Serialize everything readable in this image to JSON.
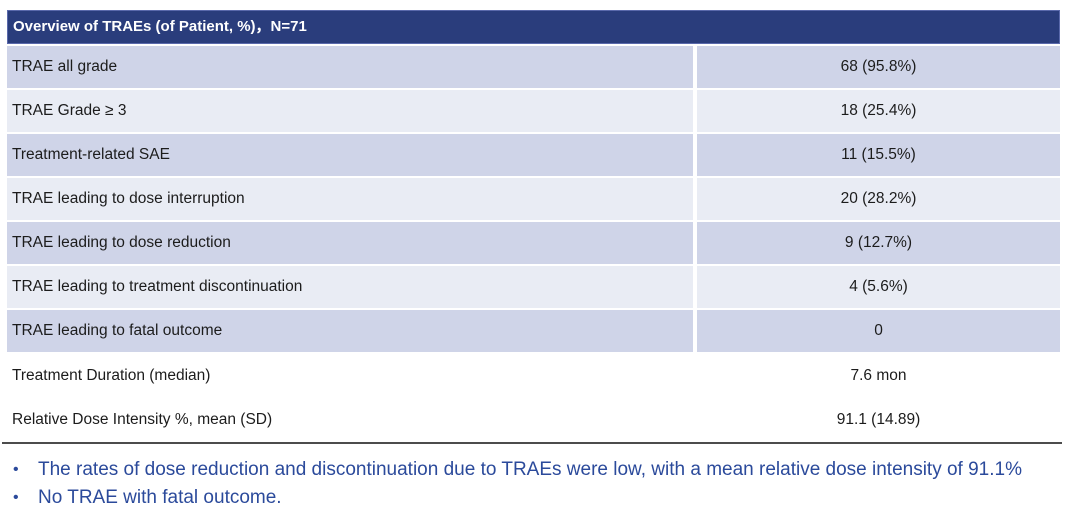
{
  "table": {
    "title": "Overview of TRAEs (of Patient, %)，N=71",
    "rows": [
      {
        "label": "TRAE all grade",
        "value": "68 (95.8%)"
      },
      {
        "label": "TRAE Grade ≥ 3",
        "value": "18 (25.4%)"
      },
      {
        "label": "Treatment-related SAE",
        "value": "11 (15.5%)"
      },
      {
        "label": "TRAE leading to dose interruption",
        "value": "20 (28.2%)"
      },
      {
        "label": "TRAE leading to dose reduction",
        "value": "9 (12.7%)"
      },
      {
        "label": "TRAE leading to treatment discontinuation",
        "value": "4 (5.6%)"
      },
      {
        "label": "TRAE leading to fatal outcome",
        "value": "0"
      },
      {
        "label": "Treatment Duration (median)",
        "value": "7.6 mon"
      },
      {
        "label": "Relative Dose Intensity %, mean (SD)",
        "value": "91.1 (14.89)"
      }
    ],
    "plain_rows_start_index": 7
  },
  "bullets": [
    "The rates of dose reduction and discontinuation due to TRAEs were low, with a mean relative dose intensity of 91.1%",
    "No TRAE with fatal outcome."
  ],
  "colors": {
    "header_bg": "#2a3d7c",
    "header_border": "#5a69ab",
    "row_dark": "#cfd4e8",
    "row_light": "#e9ecf4",
    "table_text": "#1c1c1c",
    "bullet_blue": "#2b4a9b",
    "bottom_line": "#4c4c4c"
  }
}
